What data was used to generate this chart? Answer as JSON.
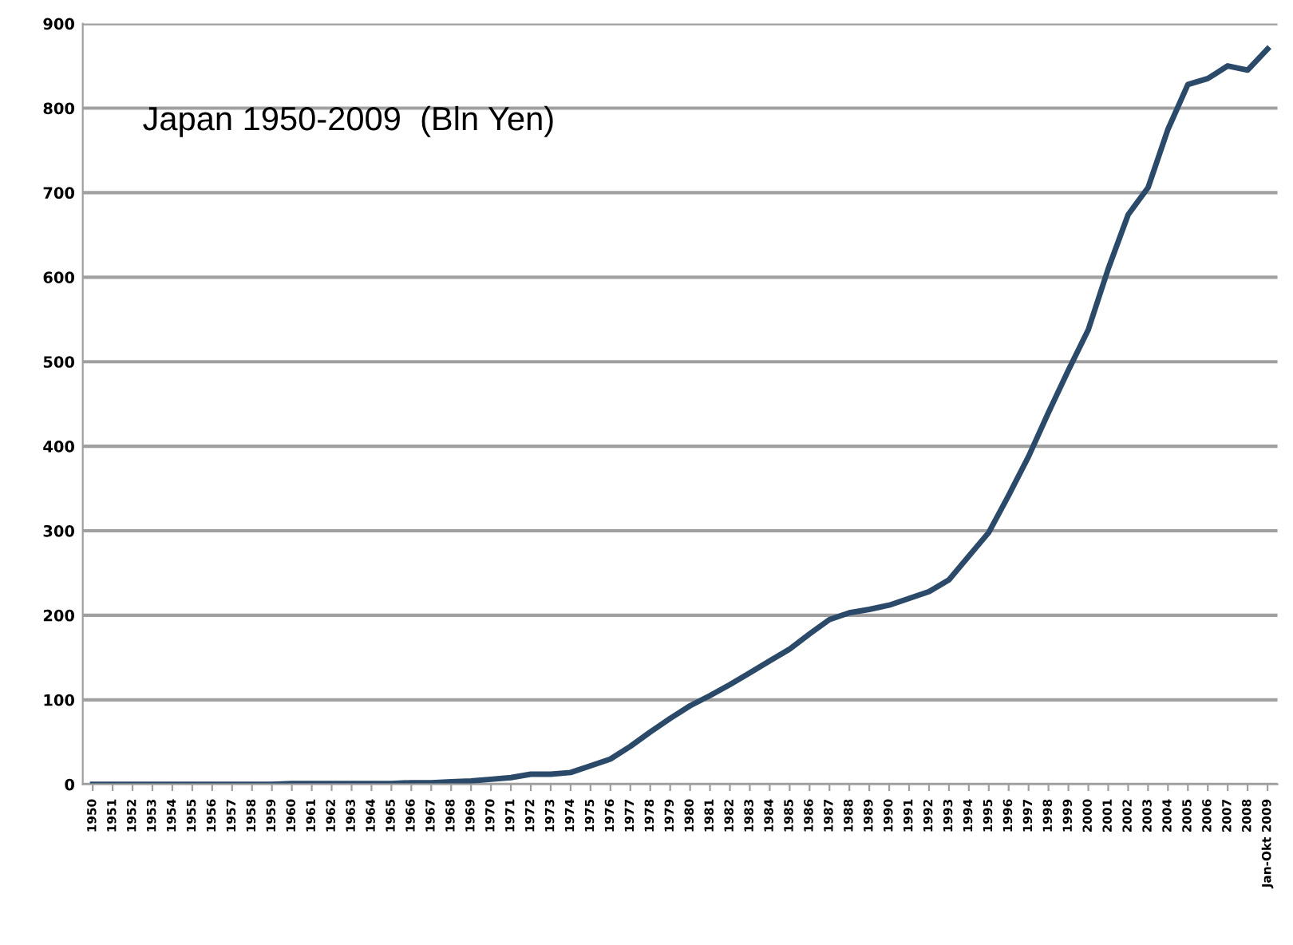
{
  "chart_data": {
    "type": "line",
    "annotations": [
      "Japan 1950-2009  (Bln Yen)"
    ],
    "categories": [
      "1950",
      "1951",
      "1952",
      "1953",
      "1954",
      "1955",
      "1956",
      "1957",
      "1958",
      "1959",
      "1960",
      "1961",
      "1962",
      "1963",
      "1964",
      "1965",
      "1966",
      "1967",
      "1968",
      "1969",
      "1970",
      "1971",
      "1972",
      "1973",
      "1974",
      "1975",
      "1976",
      "1977",
      "1978",
      "1979",
      "1980",
      "1981",
      "1982",
      "1983",
      "1984",
      "1985",
      "1986",
      "1987",
      "1988",
      "1989",
      "1990",
      "1991",
      "1992",
      "1993",
      "1994",
      "1995",
      "1996",
      "1997",
      "1998",
      "1999",
      "2000",
      "2001",
      "2002",
      "2003",
      "2004",
      "2005",
      "2006",
      "2007",
      "2008",
      "Jan-Okt 2009"
    ],
    "series": [
      {
        "color": "#2b4a6a",
        "values": [
          0,
          0,
          0,
          0,
          0,
          0,
          0,
          0,
          0,
          0,
          1,
          1,
          1,
          1,
          1,
          1,
          2,
          2,
          3,
          4,
          6,
          8,
          12,
          12,
          14,
          22,
          30,
          45,
          62,
          78,
          93,
          105,
          118,
          132,
          146,
          160,
          178,
          195,
          203,
          207,
          212,
          220,
          228,
          242,
          270,
          298,
          342,
          388,
          440,
          490,
          538,
          610,
          674,
          706,
          775,
          828,
          835,
          850,
          845,
          870
        ]
      }
    ],
    "ylim": [
      0,
      900
    ],
    "yticks": [
      0,
      100,
      200,
      300,
      400,
      500,
      600,
      700,
      800,
      900
    ],
    "grid": "y",
    "marker": "none",
    "line_style": "solid"
  }
}
